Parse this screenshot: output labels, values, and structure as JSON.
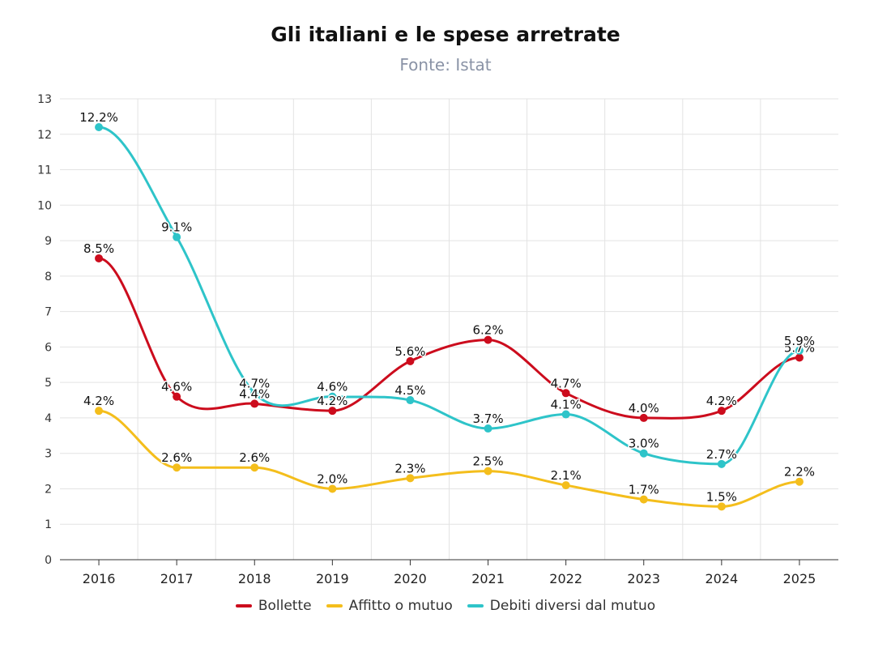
{
  "title": "Gli italiani e le spese arretrate",
  "subtitle": "Fonte: Istat",
  "chart_data": {
    "type": "line",
    "title": "Gli italiani e le spese arretrate",
    "subtitle": "Fonte: Istat",
    "categories": [
      "2016",
      "2017",
      "2018",
      "2019",
      "2020",
      "2021",
      "2022",
      "2023",
      "2024",
      "2025"
    ],
    "ylim": [
      0,
      13
    ],
    "yticks": [
      0,
      1,
      2,
      3,
      4,
      5,
      6,
      7,
      8,
      9,
      10,
      11,
      12,
      13
    ],
    "grid": true,
    "legend_position": "bottom",
    "series": [
      {
        "name": "Bollette",
        "color": "#cc0c1d",
        "values": [
          8.5,
          4.6,
          4.4,
          4.2,
          5.6,
          6.2,
          4.7,
          4.0,
          4.2,
          5.7
        ],
        "labels": [
          "8.5%",
          "4.6%",
          "4.4%",
          "4.2%",
          "5.6%",
          "6.2%",
          "4.7%",
          "4.0%",
          "4.2%",
          "5.7%"
        ]
      },
      {
        "name": "Affitto o mutuo",
        "color": "#f4be1c",
        "values": [
          4.2,
          2.6,
          2.6,
          2.0,
          2.3,
          2.5,
          2.1,
          1.7,
          1.5,
          2.2
        ],
        "labels": [
          "4.2%",
          "2.6%",
          "2.6%",
          "2.0%",
          "2.3%",
          "2.5%",
          "2.1%",
          "1.7%",
          "1.5%",
          "2.2%"
        ]
      },
      {
        "name": "Debiti diversi dal mutuo",
        "color": "#2ec4c9",
        "values": [
          12.2,
          9.1,
          4.7,
          4.6,
          4.5,
          3.7,
          4.1,
          3.0,
          2.7,
          5.9
        ],
        "labels": [
          "12.2%",
          "9.1%",
          "4.7%",
          "4.6%",
          "4.5%",
          "3.7%",
          "4.1%",
          "3.0%",
          "2.7%",
          "5.9%"
        ]
      }
    ]
  }
}
